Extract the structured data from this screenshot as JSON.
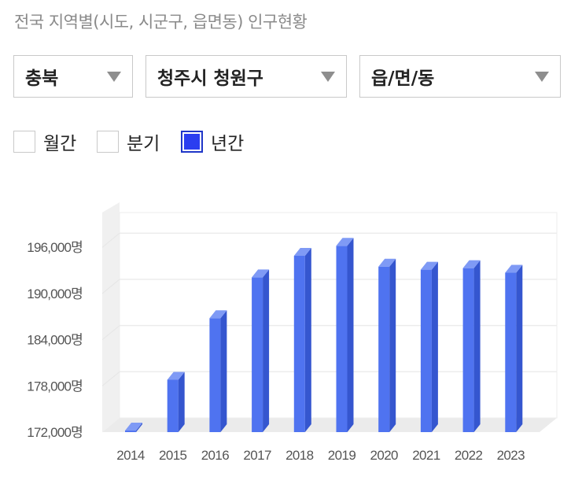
{
  "title": "전국 지역별(시도, 시군구, 읍면동) 인구현황",
  "filters": {
    "province": "충북",
    "district": "청주시 청원구",
    "town": "읍/면/동"
  },
  "period_options": [
    {
      "label": "월간",
      "checked": false
    },
    {
      "label": "분기",
      "checked": false
    },
    {
      "label": "년간",
      "checked": true
    }
  ],
  "colors": {
    "bar": "#4f73f0",
    "bar_side": "#3556cf",
    "bar_top": "#7f9af5",
    "checked": "#2b3ef0"
  },
  "chart_data": {
    "type": "bar",
    "categories": [
      "2014",
      "2015",
      "2016",
      "2017",
      "2018",
      "2019",
      "2020",
      "2021",
      "2022",
      "2023"
    ],
    "values": [
      172200,
      178800,
      186800,
      192100,
      194900,
      196200,
      193500,
      193100,
      193300,
      192700
    ],
    "ylim": [
      172000,
      199000
    ],
    "yticks": [
      172000,
      178000,
      184000,
      190000,
      196000
    ],
    "ytick_labels": [
      "172,000명",
      "178,000명",
      "184,000명",
      "190,000명",
      "196,000명"
    ],
    "grid": true,
    "style": "3d"
  }
}
